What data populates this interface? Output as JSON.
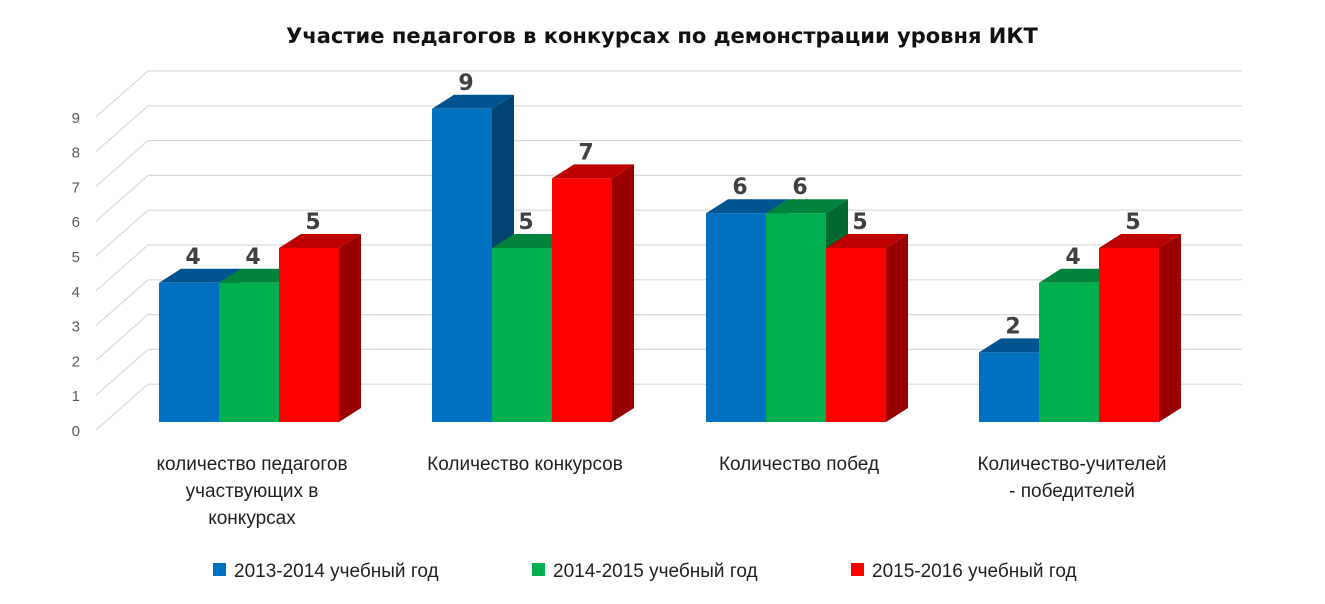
{
  "chart_data": {
    "type": "bar",
    "title": "Участие педагогов в конкурсах по демонстрации уровня ИКТ",
    "categories": [
      [
        "количество педагогов",
        "участвующих в",
        "конкурсах"
      ],
      [
        "Количество конкурсов"
      ],
      [
        "Количество побед"
      ],
      [
        "Количество-учителей",
        "- победителей"
      ]
    ],
    "series": [
      {
        "name": "2013-2014 учебный год",
        "color": "#0070C0",
        "values": [
          4,
          9,
          6,
          2
        ]
      },
      {
        "name": "2014-2015 учебный год",
        "color": "#00B050",
        "values": [
          4,
          5,
          6,
          4
        ]
      },
      {
        "name": "2015-2016 учебный год",
        "color": "#FF0000",
        "values": [
          5,
          7,
          5,
          5
        ]
      }
    ],
    "yticks": [
      "0",
      "1",
      "2",
      "3",
      "4",
      "5",
      "6",
      "7",
      "8",
      "9"
    ],
    "ylim": [
      0,
      9
    ],
    "grid": true,
    "legend": "bottom",
    "style": "3d-clustered-column"
  }
}
